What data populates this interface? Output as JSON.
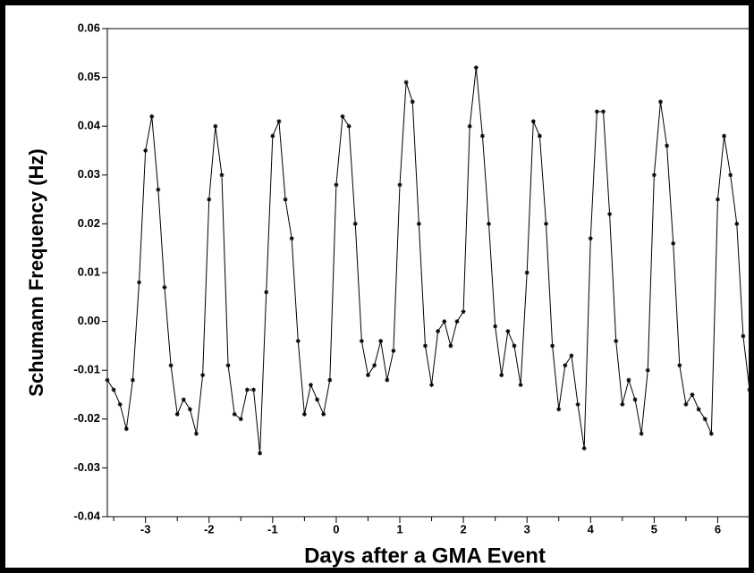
{
  "chart_data": {
    "type": "line",
    "xlabel": "Days after  a GMA  Event",
    "ylabel": "Schumann  Frequency (Hz)",
    "x": [
      -3.6,
      -3.5,
      -3.4,
      -3.3,
      -3.2,
      -3.1,
      -3.0,
      -2.9,
      -2.8,
      -2.7,
      -2.6,
      -2.5,
      -2.4,
      -2.3,
      -2.2,
      -2.1,
      -2.0,
      -1.9,
      -1.8,
      -1.7,
      -1.6,
      -1.5,
      -1.4,
      -1.3,
      -1.2,
      -1.1,
      -1.0,
      -0.9,
      -0.8,
      -0.7,
      -0.6,
      -0.5,
      -0.4,
      -0.3,
      -0.2,
      -0.1,
      0.0,
      0.1,
      0.2,
      0.3,
      0.4,
      0.5,
      0.6,
      0.7,
      0.8,
      0.9,
      1.0,
      1.1,
      1.2,
      1.3,
      1.4,
      1.5,
      1.6,
      1.7,
      1.8,
      1.9,
      2.0,
      2.1,
      2.2,
      2.3,
      2.4,
      2.5,
      2.6,
      2.7,
      2.8,
      2.9,
      3.0,
      3.1,
      3.2,
      3.3,
      3.4,
      3.5,
      3.6,
      3.7,
      3.8,
      3.9,
      4.0,
      4.1,
      4.2,
      4.3,
      4.4,
      4.5,
      4.6,
      4.7,
      4.8,
      4.9,
      5.0,
      5.1,
      5.2,
      5.3,
      5.4,
      5.5,
      5.6,
      5.7,
      5.8,
      5.9,
      6.0,
      6.1,
      6.2,
      6.3,
      6.4,
      6.5
    ],
    "series": [
      {
        "color": "#000000",
        "values": [
          -0.012,
          -0.014,
          -0.017,
          -0.022,
          -0.012,
          0.008,
          0.035,
          0.042,
          0.027,
          0.007,
          -0.009,
          -0.019,
          -0.016,
          -0.018,
          -0.023,
          -0.011,
          0.025,
          0.04,
          0.03,
          -0.009,
          -0.019,
          -0.02,
          -0.014,
          -0.014,
          -0.027,
          0.006,
          0.038,
          0.041,
          0.025,
          0.017,
          -0.004,
          -0.019,
          -0.013,
          -0.016,
          -0.019,
          -0.012,
          0.028,
          0.042,
          0.04,
          0.02,
          -0.004,
          -0.011,
          -0.009,
          -0.004,
          -0.012,
          -0.006,
          0.028,
          0.049,
          0.045,
          0.02,
          -0.005,
          -0.013,
          -0.002,
          0.0,
          -0.005,
          0.0,
          0.002,
          0.04,
          0.052,
          0.038,
          0.02,
          -0.001,
          -0.011,
          -0.002,
          -0.005,
          -0.013,
          0.01,
          0.041,
          0.038,
          0.02,
          -0.005,
          -0.018,
          -0.009,
          -0.007,
          -0.017,
          -0.026,
          0.017,
          0.043,
          0.043,
          0.022,
          -0.004,
          -0.017,
          -0.012,
          -0.016,
          -0.023,
          -0.01,
          0.03,
          0.045,
          0.036,
          0.016,
          -0.009,
          -0.017,
          -0.015,
          -0.018,
          -0.02,
          -0.023,
          0.025,
          0.038,
          0.03,
          0.02,
          -0.003,
          -0.014
        ]
      }
    ],
    "xlim": [
      -3.6,
      6.5
    ],
    "ylim": [
      -0.04,
      0.06
    ],
    "xticks": [
      -3,
      -2,
      -1,
      0,
      1,
      2,
      3,
      4,
      5,
      6
    ],
    "xminorticks": [
      -3.5,
      -2.5,
      -1.5,
      -0.5,
      0.5,
      1.5,
      2.5,
      3.5,
      4.5,
      5.5,
      6.5
    ],
    "yticks": [
      0.06,
      0.05,
      0.04,
      0.03,
      0.02,
      0.01,
      {
        "value": 0,
        "label": "0.00"
      },
      -0.01,
      -0.02,
      -0.03,
      -0.04
    ],
    "marker": "*"
  }
}
